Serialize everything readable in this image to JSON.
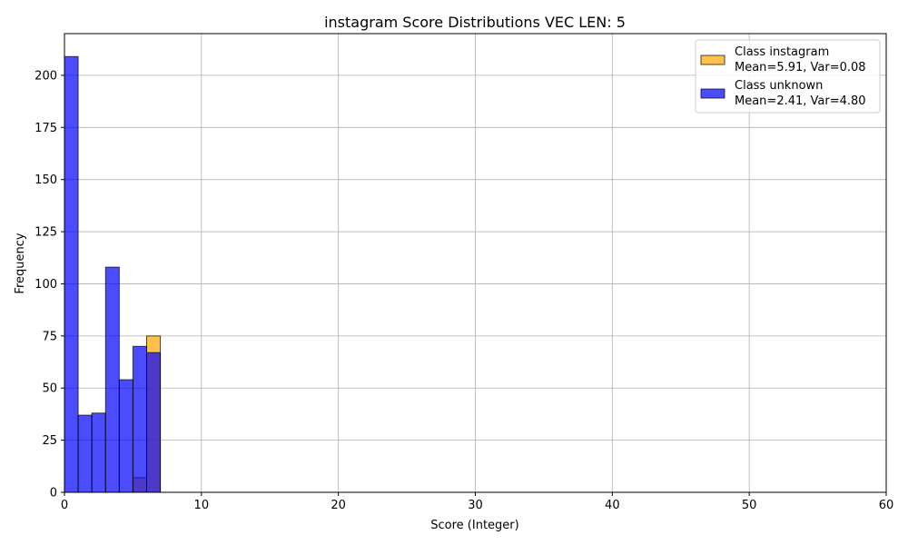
{
  "chart_data": {
    "type": "bar",
    "title": "instagram Score Distributions VEC LEN: 5",
    "xlabel": "Score (Integer)",
    "ylabel": "Frequency",
    "xlim": [
      0,
      60
    ],
    "ylim": [
      0,
      220
    ],
    "xticks": [
      0,
      10,
      20,
      30,
      40,
      50,
      60
    ],
    "yticks": [
      0,
      25,
      50,
      75,
      100,
      125,
      150,
      175,
      200
    ],
    "grid": true,
    "legend_position": "top-right",
    "bin_width": 1,
    "series": [
      {
        "name": "Class instagram",
        "stats_label": "Mean=5.91, Var=0.08",
        "color": "#FFA500",
        "opacity": 0.7,
        "bins": [
          5,
          6
        ],
        "values": [
          7,
          75
        ]
      },
      {
        "name": "Class unknown",
        "stats_label": "Mean=2.41, Var=4.80",
        "color": "#0000FF",
        "opacity": 0.7,
        "bins": [
          0,
          1,
          2,
          3,
          4,
          5,
          6
        ],
        "values": [
          209,
          37,
          38,
          108,
          54,
          70,
          67
        ]
      }
    ]
  }
}
